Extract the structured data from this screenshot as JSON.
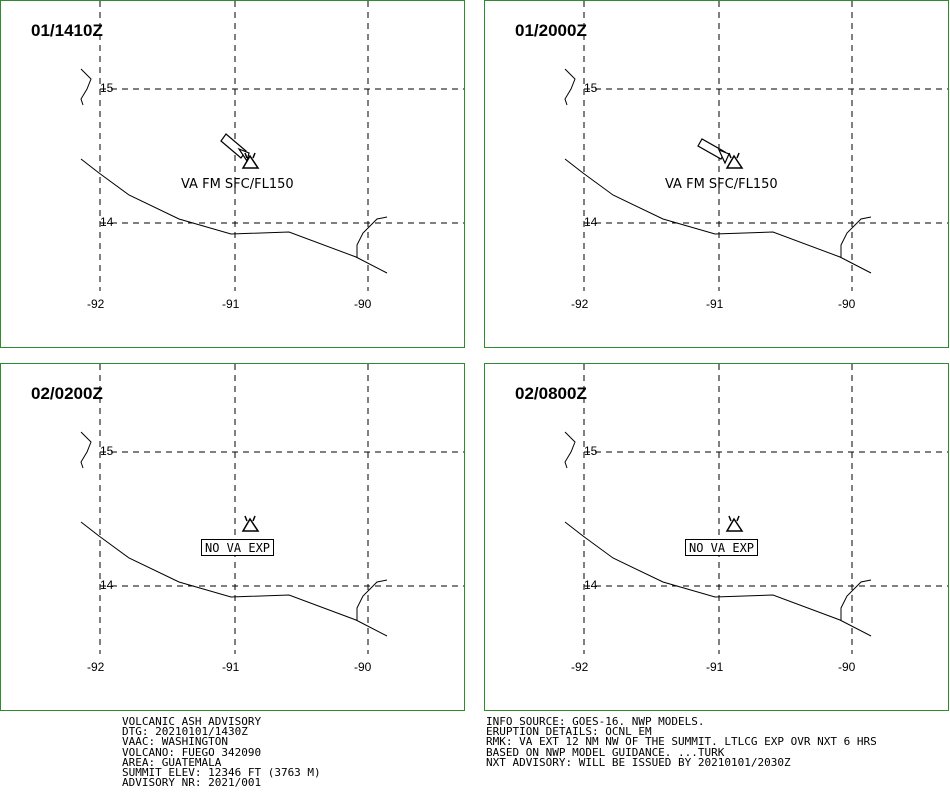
{
  "panels": [
    {
      "time": "01/1410Z",
      "ash": "VA FM SFC/FL150",
      "no_va": ""
    },
    {
      "time": "01/2000Z",
      "ash": "VA FM SFC/FL150",
      "no_va": ""
    },
    {
      "time": "02/0200Z",
      "ash": "",
      "no_va": "NO VA EXP"
    },
    {
      "time": "02/0800Z",
      "ash": "",
      "no_va": "NO VA EXP"
    }
  ],
  "grid_labels": {
    "lat_15": "15",
    "lat_14": "14",
    "lon_92": "-92",
    "lon_91": "-91",
    "lon_90": "-90"
  },
  "advisory_left": {
    "line1": "VOLCANIC ASH ADVISORY",
    "line2": "DTG: 20210101/1430Z",
    "line3": "VAAC: WASHINGTON",
    "line4": "VOLCANO: FUEGO 342090",
    "line5": "AREA: GUATEMALA",
    "line6": "SUMMIT ELEV: 12346 FT (3763 M)",
    "line7": "ADVISORY NR: 2021/001"
  },
  "advisory_right": {
    "line1": "INFO SOURCE: GOES-16. NWP MODELS.",
    "line2": "ERUPTION DETAILS: OCNL EM",
    "line3": "RMK: VA EXT 12 NM NW OF THE SUMMIT. LTLCG EXP OVR NXT 6 HRS",
    "line4": "BASED ON NWP MODEL GUIDANCE. ...TURK",
    "line5": "NXT ADVISORY: WILL BE ISSUED BY 20210101/2030Z"
  },
  "colors": {
    "panel_border": "#2e8b2e",
    "lines": "#000000"
  },
  "icons": {
    "volcano": "volcano-triangle-icon",
    "ash_arrow": "ash-direction-arrow-icon"
  }
}
